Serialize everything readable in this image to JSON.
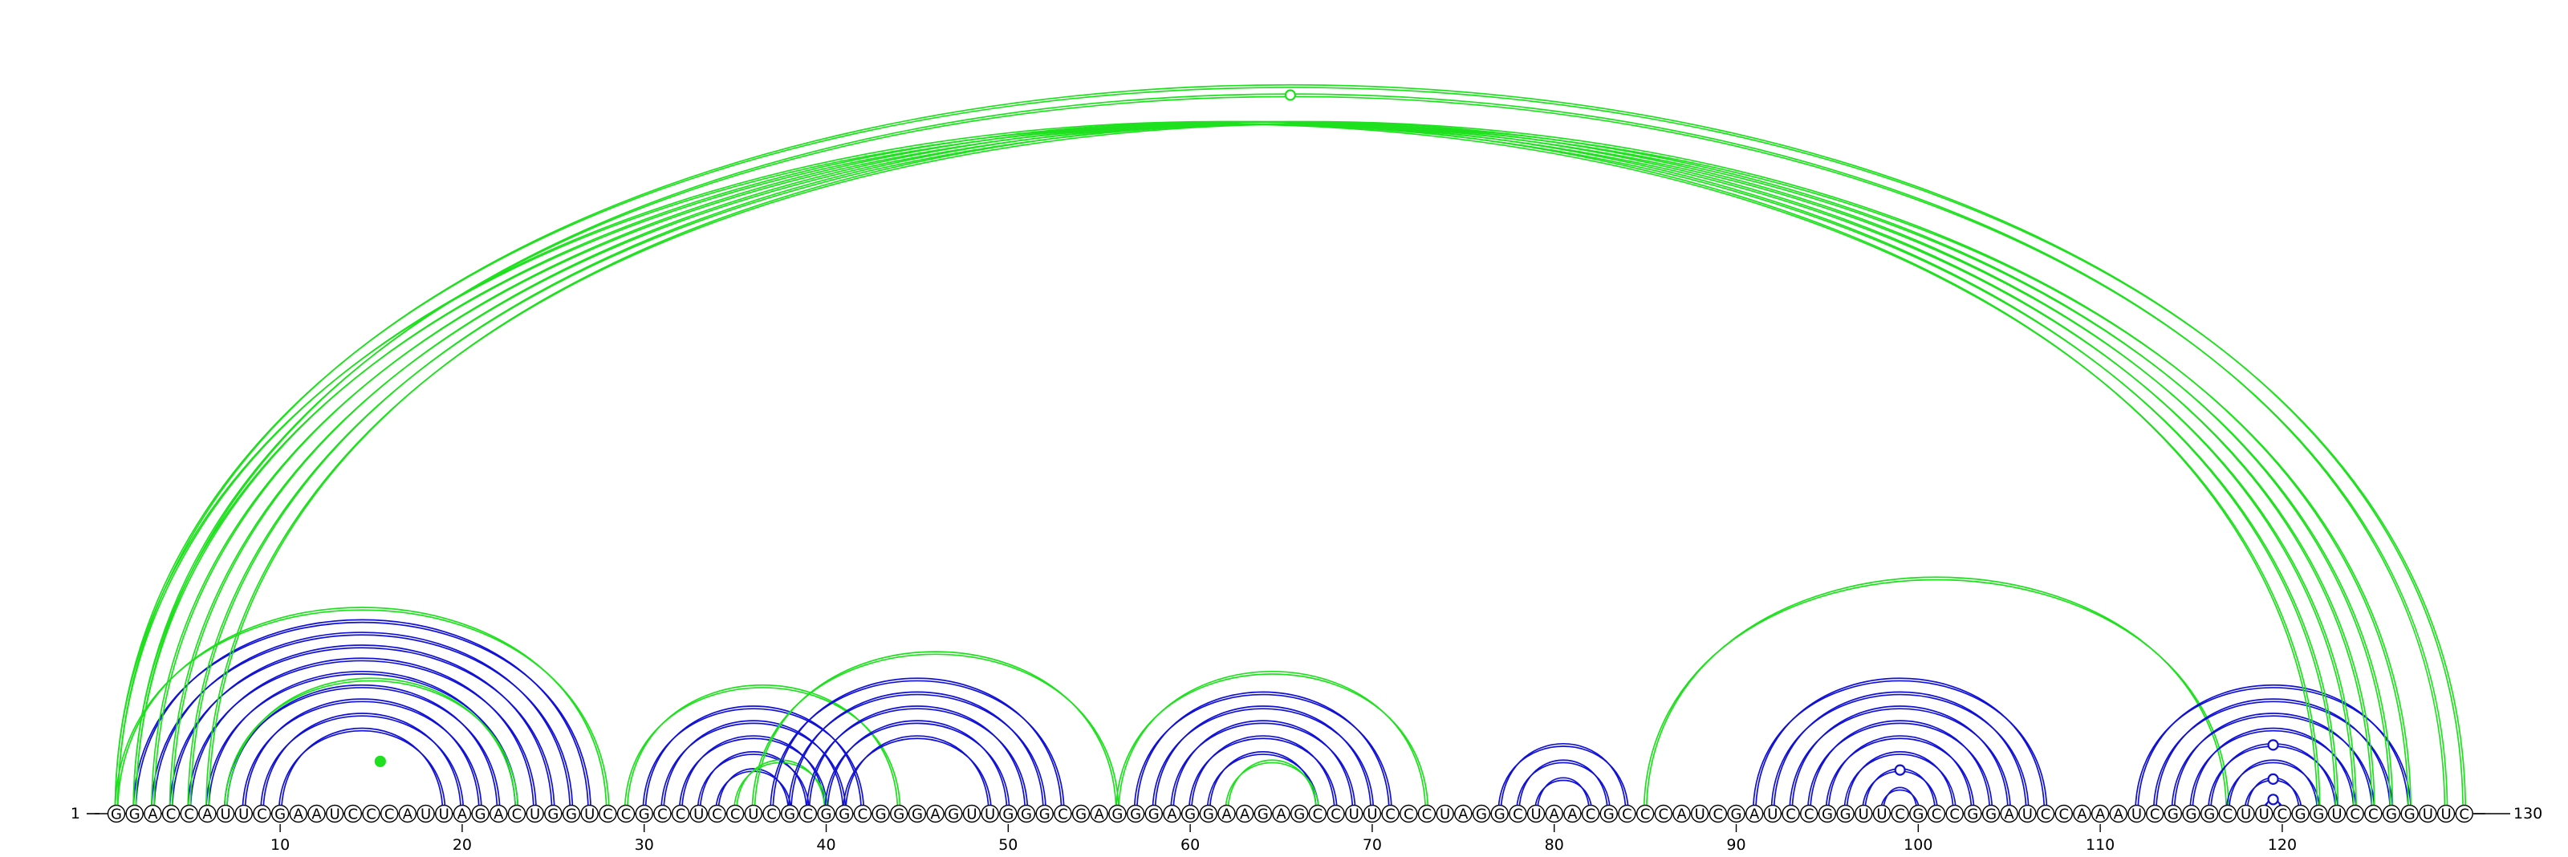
{
  "diagram": {
    "type": "rna-arc-diagram",
    "sequence": "GGACCAUUCGAAUCCCAUUAGACUGGUCCGCCUCCUCGCGGCGGGAGUUGGGCGAGGGAGGAAGAGCCUUCCCUAGGCUAACGCCCAUCGAUCCGGUUCGCCGGAUCCAAAUCGGGCUUCGGUCCGGUUC",
    "start_label": "1",
    "end_label": "130",
    "ticks": [
      10,
      20,
      30,
      40,
      50,
      60,
      70,
      80,
      90,
      100,
      110,
      120
    ],
    "colors": {
      "blue": "#1010d8",
      "green": "#1ee01e"
    },
    "arc_groups": [
      {
        "color": "blue",
        "pairs": [
          [
            2,
            27
          ],
          [
            3,
            26
          ],
          [
            4,
            25
          ],
          [
            5,
            24
          ],
          [
            6,
            23
          ],
          [
            7,
            22
          ],
          [
            8,
            21
          ],
          [
            9,
            20
          ],
          [
            10,
            19
          ]
        ]
      },
      {
        "color": "green",
        "pairs": [
          [
            1,
            28
          ],
          [
            7,
            23
          ]
        ]
      },
      {
        "color": "blue",
        "pairs": [
          [
            30,
            42
          ],
          [
            31,
            41
          ],
          [
            32,
            40
          ],
          [
            33,
            39
          ],
          [
            34,
            38
          ]
        ]
      },
      {
        "color": "green",
        "pairs": [
          [
            29,
            44
          ],
          [
            35,
            40
          ]
        ]
      },
      {
        "color": "blue",
        "pairs": [
          [
            37,
            53
          ],
          [
            38,
            52
          ],
          [
            39,
            51
          ],
          [
            40,
            50
          ],
          [
            41,
            49
          ]
        ]
      },
      {
        "color": "green",
        "pairs": [
          [
            36,
            56
          ]
        ]
      },
      {
        "color": "blue",
        "pairs": [
          [
            57,
            71
          ],
          [
            58,
            70
          ],
          [
            59,
            69
          ],
          [
            60,
            68
          ],
          [
            61,
            67
          ]
        ]
      },
      {
        "color": "green",
        "pairs": [
          [
            56,
            73
          ],
          [
            62,
            67
          ]
        ]
      },
      {
        "color": "blue",
        "pairs": [
          [
            77,
            84
          ],
          [
            78,
            83
          ],
          [
            79,
            82
          ]
        ]
      },
      {
        "color": "green",
        "pairs": [
          [
            85,
            117
          ]
        ]
      },
      {
        "color": "blue",
        "pairs": [
          [
            91,
            107
          ],
          [
            92,
            106
          ],
          [
            93,
            105
          ],
          [
            94,
            104
          ],
          [
            95,
            103
          ],
          [
            96,
            102
          ],
          [
            97,
            101
          ],
          [
            98,
            100
          ]
        ]
      },
      {
        "color": "blue",
        "pairs": [
          [
            112,
            127
          ],
          [
            113,
            126
          ],
          [
            114,
            125
          ],
          [
            115,
            124
          ],
          [
            116,
            123
          ],
          [
            117,
            122
          ],
          [
            118,
            121
          ],
          [
            119,
            120
          ]
        ]
      },
      {
        "color": "green",
        "pairs": [
          [
            1,
            122
          ],
          [
            2,
            123
          ],
          [
            3,
            124
          ],
          [
            4,
            125
          ],
          [
            5,
            126
          ],
          [
            6,
            127
          ],
          [
            1,
            130
          ],
          [
            2,
            129
          ]
        ]
      }
    ],
    "markers": [
      {
        "pair": [
          2,
          129
        ],
        "color": "green",
        "filled": false
      },
      {
        "pair": [
          13,
          18
        ],
        "color": "green",
        "filled": true
      },
      {
        "pair": [
          97,
          101
        ],
        "color": "blue",
        "filled": false
      },
      {
        "pair": [
          119,
          120
        ],
        "color": "blue",
        "filled": false
      },
      {
        "pair": [
          118,
          121
        ],
        "color": "blue",
        "filled": false
      },
      {
        "pair": [
          116,
          123
        ],
        "color": "blue",
        "filled": false
      }
    ]
  }
}
